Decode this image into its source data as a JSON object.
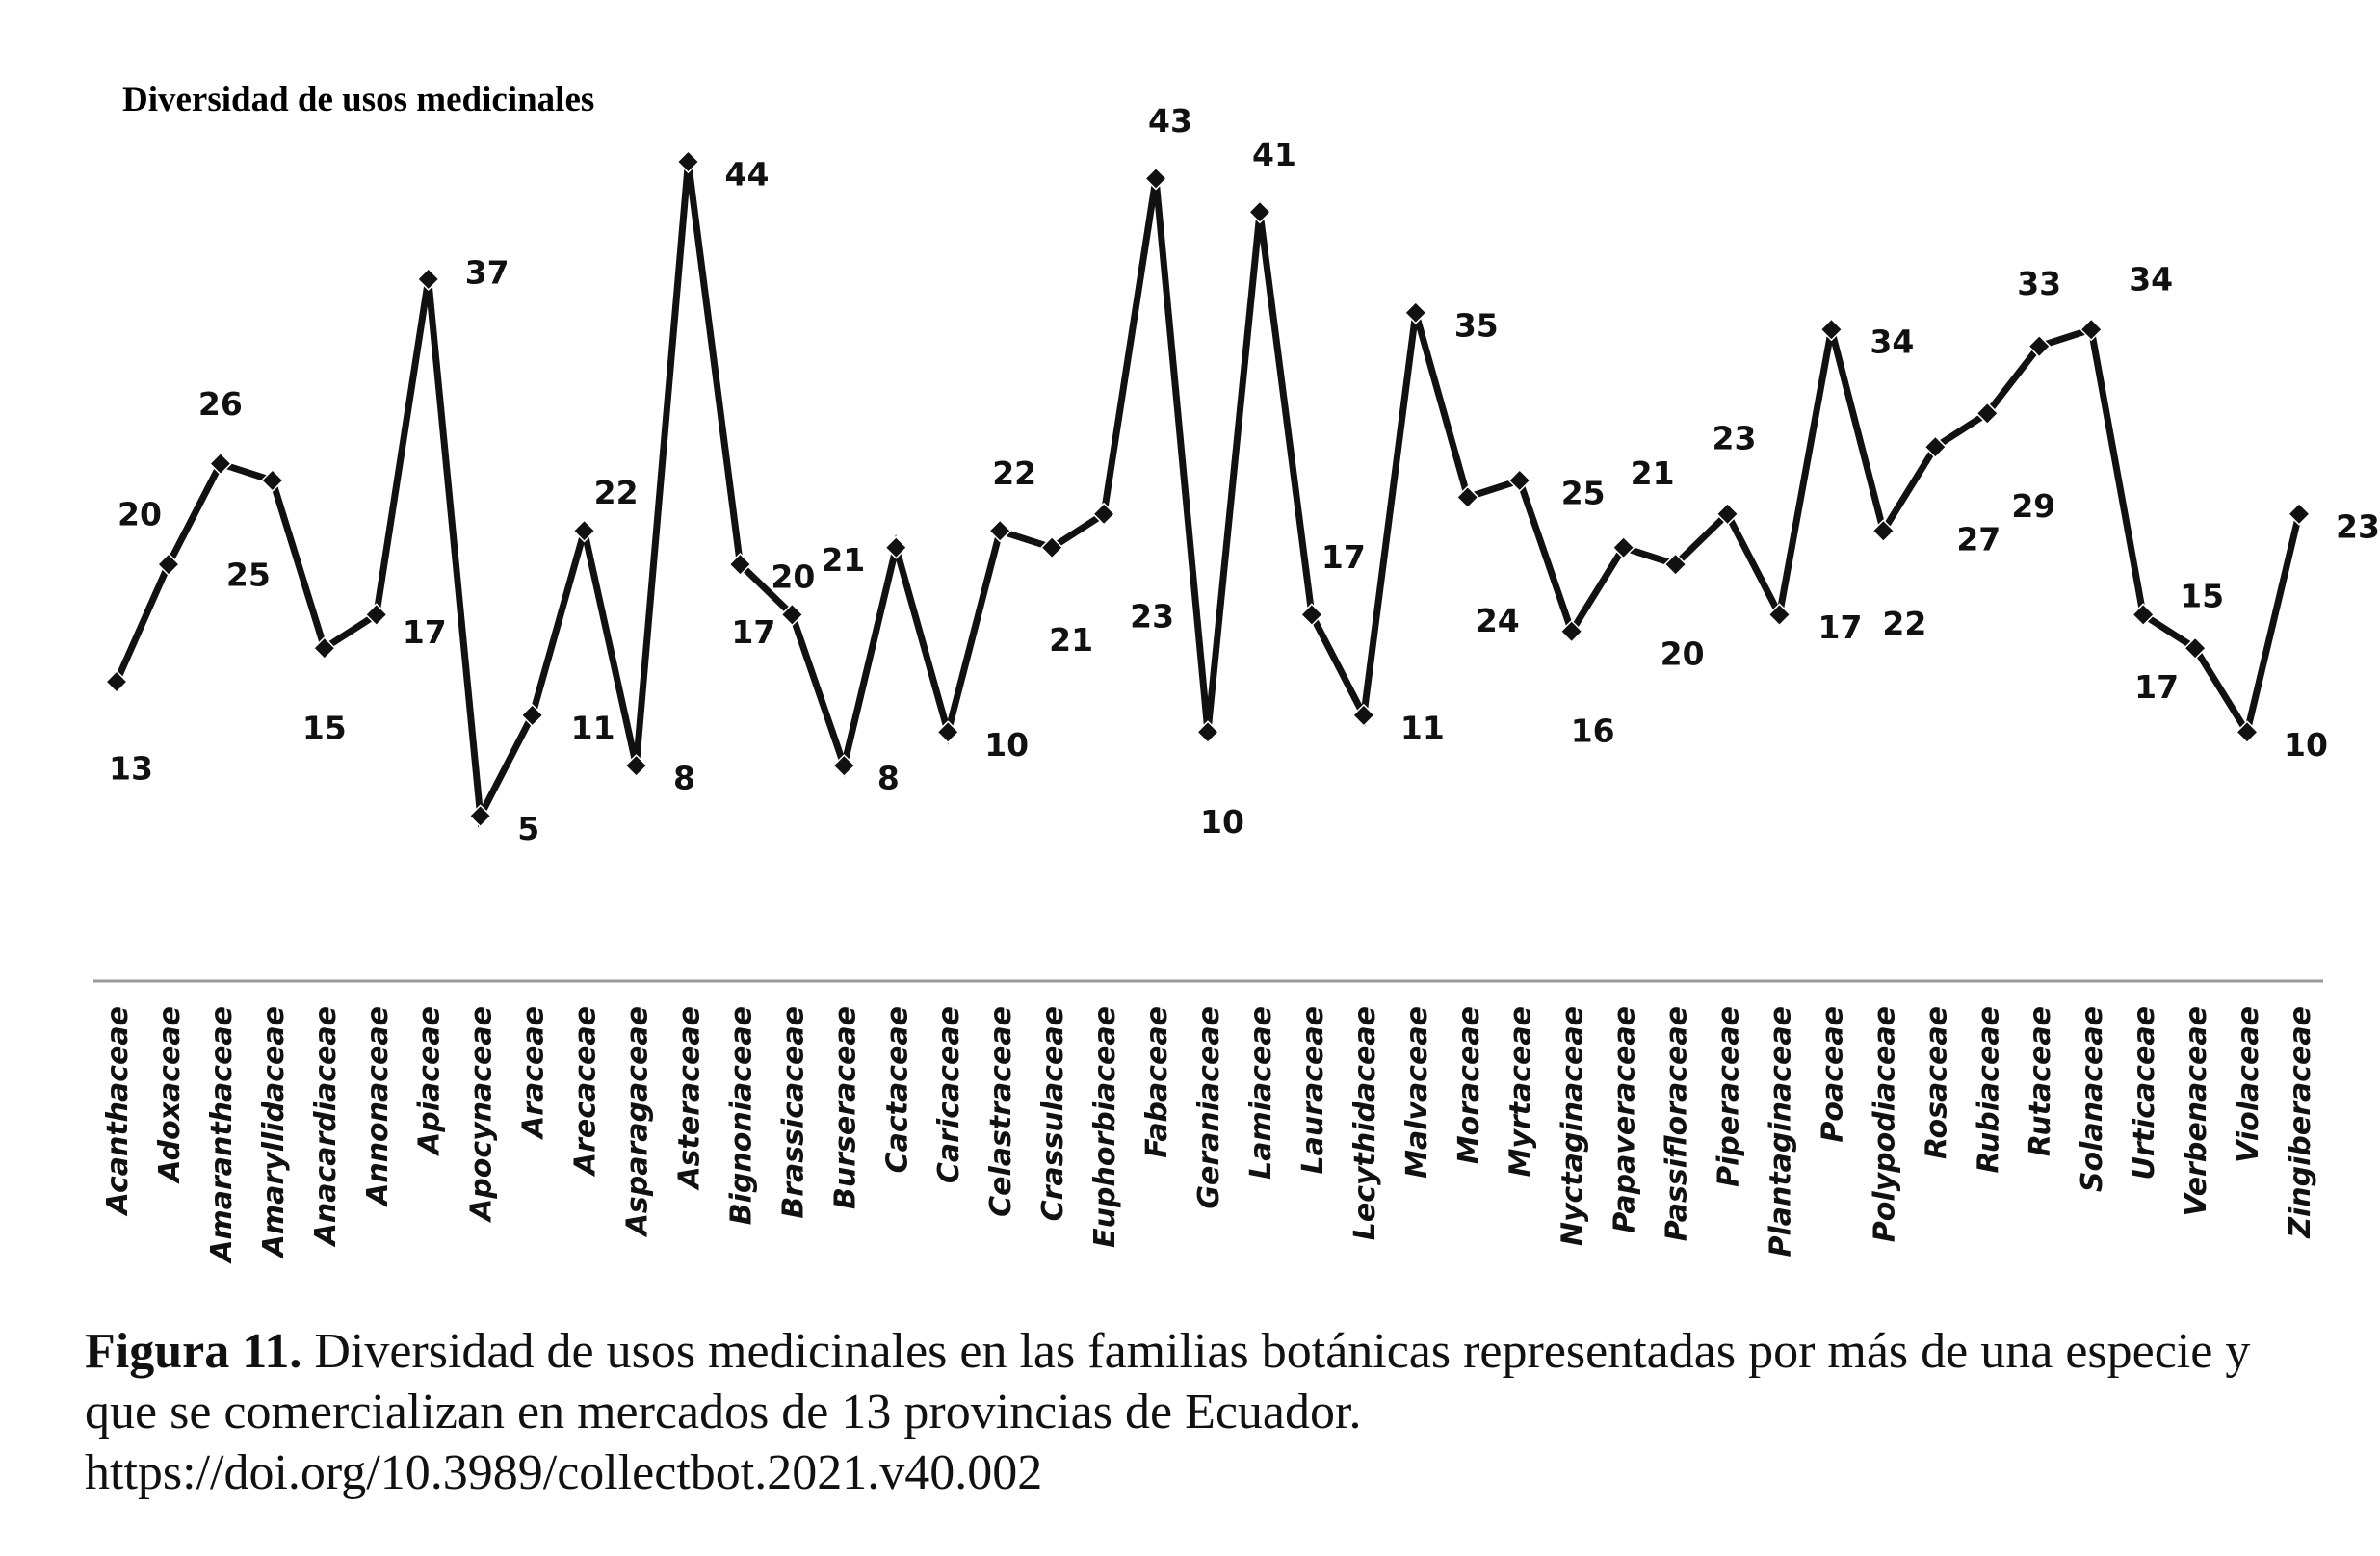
{
  "chart_data": {
    "type": "line",
    "title": "Diversidad de usos medicinales",
    "xlabel": "",
    "ylabel": "",
    "ylim": [
      0,
      50
    ],
    "grid": false,
    "legend": "none",
    "marker": "diamond",
    "categories": [
      "Acanthaceae",
      "Adoxaceae",
      "Amaranthaceae",
      "Amaryllidaceae",
      "Anacardiaceae",
      "Annonaceae",
      "Apiaceae",
      "Apocynaceae",
      "Araceae",
      "Arecaceae",
      "Asparagaceae",
      "Asteraceae",
      "Bignoniaceae",
      "Brassicaceae",
      "Burseraceae",
      "Cactaceae",
      "Caricaceae",
      "Celastraceae",
      "Crassulaceae",
      "Euphorbiaceae",
      "Fabaceae",
      "Geraniaceae",
      "Lamiaceae",
      "Lauraceae",
      "Lecythidaceae",
      "Malvaceae",
      "Moraceae",
      "Myrtaceae",
      "Nyctaginaceae",
      "Papaveraceae",
      "Passifloraceae",
      "Piperaceae",
      "Plantaginaceae",
      "Poaceae",
      "Polypodiaceae",
      "Rosaceae",
      "Rubiaceae",
      "Rutaceae",
      "Solanaceae",
      "Urticaceae",
      "Verbenaceae",
      "Violaceae",
      "Zingiberaceae"
    ],
    "values": [
      13,
      20,
      26,
      25,
      15,
      17,
      37,
      5,
      11,
      22,
      8,
      44,
      20,
      17,
      8,
      21,
      10,
      22,
      21,
      23,
      43,
      10,
      41,
      17,
      11,
      35,
      24,
      25,
      16,
      21,
      20,
      23,
      17,
      34,
      22,
      27,
      29,
      33,
      34,
      17,
      15,
      10,
      23
    ],
    "line_color": "#111111"
  },
  "caption": {
    "label": "Figura 11.",
    "text": " Diversidad de usos medicinales en las familias botánicas representadas por más de una especie y que se comercializan en mercados de 13 provincias de Ecuador.",
    "doi": "https://doi.org/10.3989/collectbot.2021.v40.002"
  }
}
